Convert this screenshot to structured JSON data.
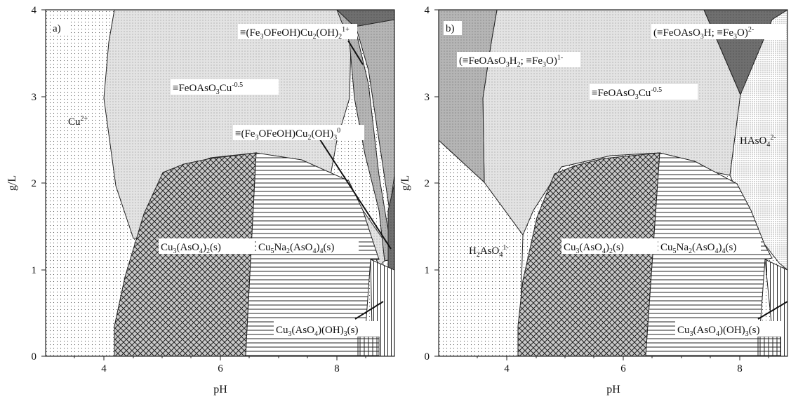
{
  "panels": [
    {
      "tag": "a)",
      "xlabel": "pH",
      "ylabel": "g/L",
      "xticks": [
        "4",
        "6",
        "8"
      ],
      "yticks": [
        "0",
        "1",
        "2",
        "3",
        "4"
      ],
      "labels": {
        "cu2": "Cu2+",
        "feoaso3cu": "≡FeOAsO3Cu-0.5",
        "fe3ofeoh_1p": "≡(Fe3OFeOH)Cu2(OH)21+",
        "fe3ofeoh_0": "≡(Fe3OFeOH)Cu2(OH)30",
        "cu3aso42": "Cu3(AsO4)2(s)",
        "cu5na2": "Cu5Na2(AsO4)4(s)",
        "cu3aso4oh3": "Cu3(AsO4)(OH)3(s)"
      }
    },
    {
      "tag": "b)",
      "xlabel": "pH",
      "ylabel": "g/L",
      "xticks": [
        "4",
        "6",
        "8"
      ],
      "yticks": [
        "0",
        "1",
        "2",
        "3",
        "4"
      ],
      "labels": {
        "feoaso3h2": "(≡FeOAsO3H2; ≡Fe3O)1-",
        "feoaso3h": "(≡FeOAsO3H; ≡Fe3O)2-",
        "feoaso3cu": "≡FeOAsO3Cu-0.5",
        "haso4": "HAsO42-",
        "h2aso4": "H2AsO41-",
        "cu3aso42": "Cu3(AsO4)2(s)",
        "cu5na2": "Cu5Na2(AsO4)4(s)",
        "cu3aso4oh3": "Cu3(AsO4)(OH)3(s)"
      }
    }
  ]
}
